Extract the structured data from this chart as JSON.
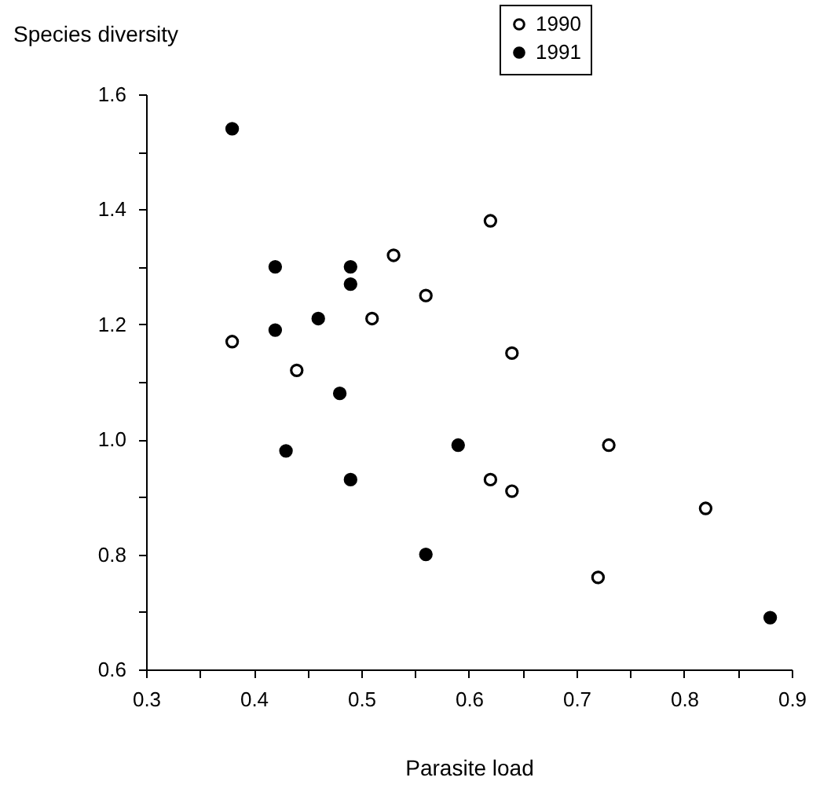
{
  "chart_data": {
    "type": "scatter",
    "xlabel": "Parasite load",
    "ylabel": "Species diversity",
    "xlim": [
      0.3,
      0.9
    ],
    "ylim": [
      0.6,
      1.6
    ],
    "xticks": [
      0.3,
      {
        "value": 0.35,
        "label": null
      },
      0.4,
      {
        "value": 0.45,
        "label": null
      },
      0.5,
      {
        "value": 0.55,
        "label": null
      },
      0.6,
      {
        "value": 0.65,
        "label": null
      },
      0.7,
      {
        "value": 0.75,
        "label": null
      },
      0.8,
      {
        "value": 0.85,
        "label": null
      },
      0.9
    ],
    "yticks": [
      0.6,
      {
        "value": 0.7,
        "label": null
      },
      0.8,
      {
        "value": 0.9,
        "label": null
      },
      {
        "value": 1,
        "label": "1.0"
      },
      {
        "value": 1.1,
        "label": null
      },
      1.2,
      {
        "value": 1.3,
        "label": null
      },
      1.4,
      {
        "value": 1.5,
        "label": null
      },
      1.6
    ],
    "grid": false,
    "legend": "top right",
    "marker": "circle",
    "series": [
      {
        "name": "1990",
        "color": "#000000",
        "x": [
          0.38,
          0.53,
          0.62,
          0.56,
          0.51,
          0.44,
          0.64,
          0.73,
          0.62,
          0.64,
          0.82,
          0.72
        ],
        "values": [
          1.17,
          1.32,
          1.38,
          1.25,
          1.21,
          1.12,
          1.15,
          0.99,
          0.93,
          0.91,
          0.88,
          0.76
        ]
      },
      {
        "name": "1991",
        "color": "#000000",
        "x": [
          0.38,
          0.42,
          0.49,
          0.49,
          0.46,
          0.42,
          0.48,
          0.43,
          0.59,
          0.49,
          0.56,
          0.88
        ],
        "values": [
          1.54,
          1.3,
          1.3,
          1.27,
          1.21,
          1.19,
          1.08,
          0.98,
          0.99,
          0.93,
          0.8,
          0.69
        ]
      }
    ]
  }
}
